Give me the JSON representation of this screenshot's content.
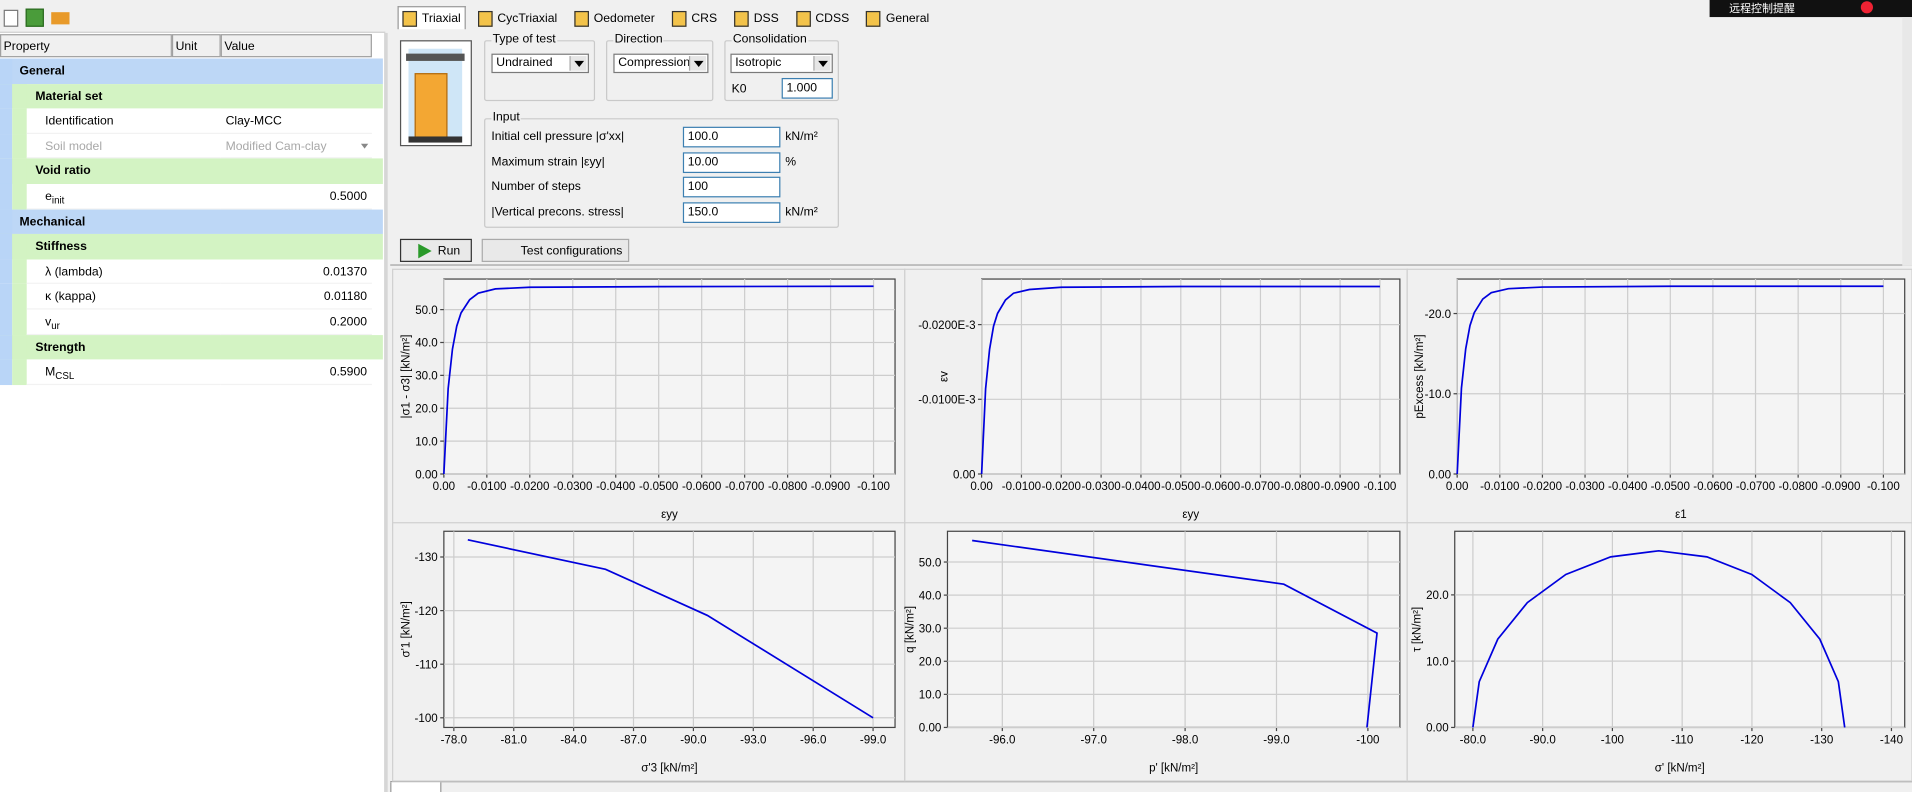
{
  "notification": "远程控制提醒",
  "property_grid": {
    "headers": [
      "Property",
      "Unit",
      "Value"
    ],
    "sections": [
      {
        "title": "General",
        "subsections": [
          {
            "title": "Material set",
            "rows": [
              {
                "property": "Identification",
                "value": "Clay-MCC"
              },
              {
                "property": "Soil model",
                "value": "Modified Cam-clay",
                "disabled": true
              }
            ]
          },
          {
            "title": "Void ratio",
            "rows": [
              {
                "property": "e",
                "sub": "init",
                "value": "0.5000"
              }
            ]
          }
        ]
      },
      {
        "title": "Mechanical",
        "subsections": [
          {
            "title": "Stiffness",
            "rows": [
              {
                "property": "λ (lambda)",
                "value": "0.01370"
              },
              {
                "property": "κ (kappa)",
                "value": "0.01180"
              },
              {
                "property": "v",
                "sub": "ur",
                "value": "0.2000"
              }
            ]
          },
          {
            "title": "Strength",
            "rows": [
              {
                "property": "M",
                "sub": "CSL",
                "value": "0.5900"
              }
            ]
          }
        ]
      }
    ]
  },
  "tabs": [
    "Triaxial",
    "CycTriaxial",
    "Oedometer",
    "CRS",
    "DSS",
    "CDSS",
    "General"
  ],
  "active_tab": 0,
  "type_of_test": {
    "label": "Type of test",
    "value": "Undrained"
  },
  "direction": {
    "label": "Direction",
    "value": "Compression"
  },
  "consolidation": {
    "label": "Consolidation",
    "value": "Isotropic",
    "k0_label": "K0",
    "k0": "1.000"
  },
  "input": {
    "title": "Input",
    "rows": [
      {
        "label": "Initial cell pressure |σ'xx|",
        "value": "100.0",
        "unit": "kN/m²"
      },
      {
        "label": "Maximum strain |εyy|",
        "value": "10.00",
        "unit": "%"
      },
      {
        "label": "Number of steps",
        "value": "100"
      },
      {
        "label": "|Vertical precons. stress|",
        "value": "150.0",
        "unit": "kN/m²"
      }
    ]
  },
  "buttons": {
    "run": "Run",
    "test_configurations": "Test configurations"
  },
  "chart_data": [
    {
      "type": "line",
      "xlabel": "εyy",
      "ylabel": "|σ1 - σ3| [kN/m²]",
      "grid": true,
      "x": [
        0,
        -0.001,
        -0.002,
        -0.003,
        -0.004,
        -0.006,
        -0.008,
        -0.012,
        -0.02,
        -0.05,
        -0.1
      ],
      "series": [
        {
          "color": "#0000dd",
          "values": [
            0,
            26,
            38,
            45,
            49,
            53,
            55,
            56.3,
            56.8,
            57,
            57.1
          ]
        }
      ],
      "xlim": [
        0,
        -0.105
      ],
      "ylim": [
        0,
        59.3
      ],
      "xticks": [
        {
          "value": 0,
          "label": "0.00"
        },
        {
          "value": -0.01,
          "label": "-0.0100"
        },
        {
          "value": -0.02,
          "label": "-0.0200"
        },
        {
          "value": -0.03,
          "label": "-0.0300"
        },
        {
          "value": -0.04,
          "label": "-0.0400"
        },
        {
          "value": -0.05,
          "label": "-0.0500"
        },
        {
          "value": -0.06,
          "label": "-0.0600"
        },
        {
          "value": -0.07,
          "label": "-0.0700"
        },
        {
          "value": -0.08,
          "label": "-0.0800"
        },
        {
          "value": -0.09,
          "label": "-0.0900"
        },
        {
          "value": -0.1,
          "label": "-0.100"
        }
      ],
      "yticks": [
        {
          "value": 0,
          "label": "0.00"
        },
        {
          "value": 10,
          "label": "10.0"
        },
        {
          "value": 20,
          "label": "20.0"
        },
        {
          "value": 30,
          "label": "30.0"
        },
        {
          "value": 40,
          "label": "40.0"
        },
        {
          "value": 50,
          "label": "50.0"
        }
      ]
    },
    {
      "type": "line",
      "xlabel": "εyy",
      "ylabel": "εv",
      "grid": true,
      "x": [
        0,
        -0.001,
        -0.002,
        -0.003,
        -0.004,
        -0.006,
        -0.008,
        -0.012,
        -0.02,
        -0.05,
        -0.1
      ],
      "series": [
        {
          "color": "#0000dd",
          "values": [
            0,
            -1.14e-05,
            -1.67e-05,
            -1.98e-05,
            -2.15e-05,
            -2.33e-05,
            -2.42e-05,
            -2.47e-05,
            -2.5e-05,
            -2.51e-05,
            -2.51e-05
          ]
        }
      ],
      "xlim": [
        0,
        -0.105
      ],
      "ylim": [
        0,
        -2.61e-05
      ],
      "xticks": [
        {
          "value": 0,
          "label": "0.00"
        },
        {
          "value": -0.01,
          "label": "-0.0100"
        },
        {
          "value": -0.02,
          "label": "-0.0200"
        },
        {
          "value": -0.03,
          "label": "-0.0300"
        },
        {
          "value": -0.04,
          "label": "-0.0400"
        },
        {
          "value": -0.05,
          "label": "-0.0500"
        },
        {
          "value": -0.06,
          "label": "-0.0600"
        },
        {
          "value": -0.07,
          "label": "-0.0700"
        },
        {
          "value": -0.08,
          "label": "-0.0800"
        },
        {
          "value": -0.09,
          "label": "-0.0900"
        },
        {
          "value": -0.1,
          "label": "-0.100"
        }
      ],
      "yticks": [
        {
          "value": 0,
          "label": "0.00"
        },
        {
          "value": -1e-05,
          "label": "-0.0100E-3"
        },
        {
          "value": -2e-05,
          "label": "-0.0200E-3"
        }
      ]
    },
    {
      "type": "line",
      "xlabel": "ε1",
      "ylabel": "pExcess [kN/m²]",
      "grid": true,
      "x": [
        0,
        -0.001,
        -0.002,
        -0.003,
        -0.004,
        -0.006,
        -0.008,
        -0.012,
        -0.02,
        -0.05,
        -0.1
      ],
      "series": [
        {
          "color": "#0000dd",
          "values": [
            0,
            -10.7,
            -15.6,
            -18.5,
            -20.1,
            -21.8,
            -22.6,
            -23.1,
            -23.3,
            -23.4,
            -23.4
          ]
        }
      ],
      "xlim": [
        0,
        -0.105
      ],
      "ylim": [
        0,
        -24.3
      ],
      "xticks": [
        {
          "value": 0,
          "label": "0.00"
        },
        {
          "value": -0.01,
          "label": "-0.0100"
        },
        {
          "value": -0.02,
          "label": "-0.0200"
        },
        {
          "value": -0.03,
          "label": "-0.0300"
        },
        {
          "value": -0.04,
          "label": "-0.0400"
        },
        {
          "value": -0.05,
          "label": "-0.0500"
        },
        {
          "value": -0.06,
          "label": "-0.0600"
        },
        {
          "value": -0.07,
          "label": "-0.0700"
        },
        {
          "value": -0.08,
          "label": "-0.0800"
        },
        {
          "value": -0.09,
          "label": "-0.0900"
        },
        {
          "value": -0.1,
          "label": "-0.100"
        }
      ],
      "yticks": [
        {
          "value": 0,
          "label": "0.00"
        },
        {
          "value": -10,
          "label": "-10.0"
        },
        {
          "value": -20,
          "label": "-20.0"
        }
      ]
    },
    {
      "type": "line",
      "xlabel": "σ'3 [kN/m²]",
      "ylabel": "σ'1 [kN/m²]",
      "grid": true,
      "x": [
        -78.7,
        -85.6,
        -90.7,
        -99.0
      ],
      "series": [
        {
          "color": "#0000dd",
          "values": [
            -133.2,
            -127.7,
            -119.1,
            -100.0
          ]
        }
      ],
      "xlim": [
        -77.5,
        -100.1
      ],
      "ylim": [
        -98.2,
        -134.8
      ],
      "xticks": [
        {
          "value": -78,
          "label": "-78.0"
        },
        {
          "value": -81,
          "label": "-81.0"
        },
        {
          "value": -84,
          "label": "-84.0"
        },
        {
          "value": -87,
          "label": "-87.0"
        },
        {
          "value": -90,
          "label": "-90.0"
        },
        {
          "value": -93,
          "label": "-93.0"
        },
        {
          "value": -96,
          "label": "-96.0"
        },
        {
          "value": -99,
          "label": "-99.0"
        }
      ],
      "yticks": [
        -130,
        -120,
        -110,
        -100
      ]
    },
    {
      "type": "line",
      "xlabel": "p' [kN/m²]",
      "ylabel": "q [kN/m²]",
      "grid": true,
      "x": [
        -95.67,
        -99.08,
        -100.1,
        -99.99
      ],
      "series": [
        {
          "color": "#0000dd",
          "values": [
            56.5,
            43.3,
            28.5,
            0
          ]
        }
      ],
      "xlim": [
        -95.4,
        -100.35
      ],
      "ylim": [
        0,
        59.3
      ],
      "xticks": [
        {
          "value": -96,
          "label": "-96.0"
        },
        {
          "value": -97,
          "label": "-97.0"
        },
        {
          "value": -98,
          "label": "-98.0"
        },
        {
          "value": -99,
          "label": "-99.0"
        },
        -100
      ],
      "yticks": [
        {
          "value": 0,
          "label": "0.00"
        },
        {
          "value": 10,
          "label": "10.0"
        },
        {
          "value": 20,
          "label": "20.0"
        },
        {
          "value": 30,
          "label": "30.0"
        },
        {
          "value": 40,
          "label": "40.0"
        },
        {
          "value": 50,
          "label": "50.0"
        }
      ]
    },
    {
      "type": "line",
      "xlabel": "σ' [kN/m²]",
      "ylabel": "τ [kN/m²]",
      "grid": true,
      "x": [
        -80.0,
        -80.91,
        -83.57,
        -87.81,
        -93.32,
        -99.75,
        -106.65,
        -113.55,
        -119.98,
        -125.49,
        -129.73,
        -132.39,
        -133.3
      ],
      "series": [
        {
          "color": "#0000dd",
          "values": [
            0,
            6.9,
            13.33,
            18.84,
            23.08,
            25.74,
            26.65,
            25.74,
            23.08,
            18.84,
            13.33,
            6.9,
            0
          ]
        }
      ],
      "xlim": [
        -77.4,
        -141.9
      ],
      "ylim": [
        0,
        29.6
      ],
      "xticks": [
        {
          "value": -80,
          "label": "-80.0"
        },
        {
          "value": -90,
          "label": "-90.0"
        },
        -100,
        -110,
        -120,
        -130,
        -140
      ],
      "yticks": [
        {
          "value": 0,
          "label": "0.00"
        },
        {
          "value": 10,
          "label": "10.0"
        },
        {
          "value": 20,
          "label": "20.0"
        }
      ]
    }
  ]
}
